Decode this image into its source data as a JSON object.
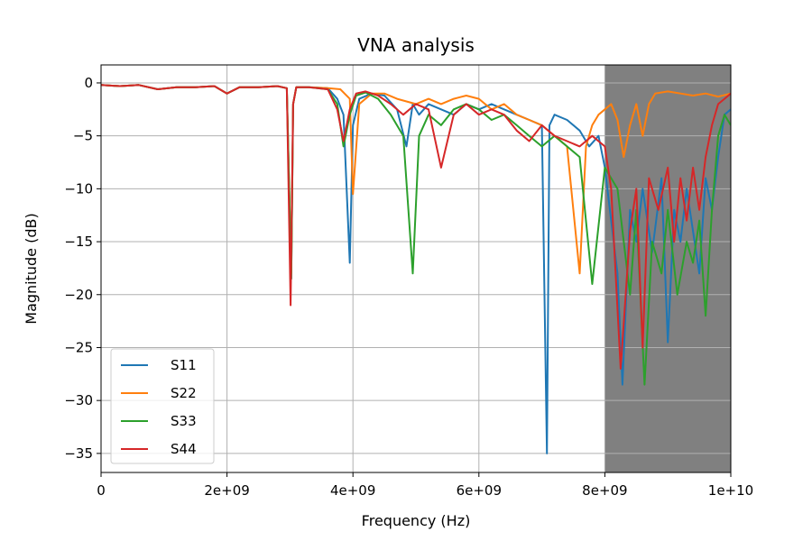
{
  "chart_data": {
    "type": "line",
    "title": "VNA analysis",
    "xlabel": "Frequency (Hz)",
    "ylabel": "Magnitude (dB)",
    "xlim": [
      0,
      10000000000
    ],
    "ylim": [
      -36.8,
      1.7
    ],
    "x_ticks": [
      0,
      2000000000,
      4000000000,
      6000000000,
      8000000000,
      10000000000
    ],
    "x_tick_labels": [
      "0",
      "2e+09",
      "4e+09",
      "6e+09",
      "8e+09",
      "1e+10"
    ],
    "y_ticks": [
      0,
      -5,
      -10,
      -15,
      -20,
      -25,
      -30,
      -35
    ],
    "y_tick_labels": [
      "0",
      "−5",
      "−10",
      "−15",
      "−20",
      "−25",
      "−30",
      "−35"
    ],
    "grid": true,
    "legend_position": "lower-left",
    "shaded_region": {
      "x_start": 8000000000,
      "x_end": 10000000000,
      "color": "#808080"
    },
    "series": [
      {
        "name": "S11",
        "color": "#1f77b4",
        "x": [
          0,
          300000000,
          600000000,
          900000000,
          1200000000,
          1500000000,
          1800000000,
          2000000000,
          2200000000,
          2500000000,
          2800000000,
          2950000000,
          3020000000,
          3050000000,
          3100000000,
          3300000000,
          3600000000,
          3750000000,
          3850000000,
          3950000000,
          4000000000,
          4100000000,
          4300000000,
          4500000000,
          4700000000,
          4850000000,
          4950000000,
          5050000000,
          5200000000,
          5400000000,
          5600000000,
          5800000000,
          6000000000,
          6200000000,
          6400000000,
          6600000000,
          6800000000,
          7000000000,
          7080000000,
          7120000000,
          7200000000,
          7400000000,
          7600000000,
          7750000000,
          7900000000,
          8000000000,
          8100000000,
          8200000000,
          8280000000,
          8400000000,
          8500000000,
          8600000000,
          8750000000,
          8900000000,
          9000000000,
          9100000000,
          9200000000,
          9300000000,
          9400000000,
          9500000000,
          9600000000,
          9700000000,
          9800000000,
          9900000000,
          10000000000
        ],
        "values": [
          -0.2,
          -0.3,
          -0.2,
          -0.6,
          -0.4,
          -0.4,
          -0.3,
          -1.0,
          -0.4,
          -0.4,
          -0.3,
          -0.5,
          -18.5,
          -2.0,
          -0.4,
          -0.4,
          -0.5,
          -1.5,
          -3.0,
          -17.0,
          -4.0,
          -1.5,
          -1.0,
          -1.2,
          -2.5,
          -6.0,
          -2.0,
          -3.0,
          -2.0,
          -2.5,
          -3.0,
          -2.0,
          -2.5,
          -2.0,
          -2.5,
          -3.0,
          -3.5,
          -4.0,
          -35.0,
          -4.0,
          -3.0,
          -3.5,
          -4.5,
          -6.0,
          -5.0,
          -8.0,
          -13.0,
          -18.0,
          -28.5,
          -12.0,
          -15.0,
          -10.0,
          -16.0,
          -9.0,
          -24.5,
          -12.0,
          -15.0,
          -10.0,
          -14.0,
          -18.0,
          -9.0,
          -12.0,
          -7.0,
          -3.0,
          -2.5
        ]
      },
      {
        "name": "S22",
        "color": "#ff7f0e",
        "x": [
          0,
          300000000,
          600000000,
          900000000,
          1200000000,
          1500000000,
          1800000000,
          2000000000,
          2200000000,
          2500000000,
          2800000000,
          2950000000,
          3020000000,
          3050000000,
          3100000000,
          3300000000,
          3600000000,
          3800000000,
          3950000000,
          4000000000,
          4100000000,
          4300000000,
          4500000000,
          4700000000,
          5000000000,
          5200000000,
          5400000000,
          5600000000,
          5800000000,
          6000000000,
          6200000000,
          6400000000,
          6600000000,
          6800000000,
          7000000000,
          7200000000,
          7400000000,
          7600000000,
          7700000000,
          7800000000,
          7900000000,
          8000000000,
          8100000000,
          8200000000,
          8300000000,
          8400000000,
          8500000000,
          8600000000,
          8700000000,
          8800000000,
          9000000000,
          9200000000,
          9400000000,
          9600000000,
          9800000000,
          10000000000
        ],
        "values": [
          -0.2,
          -0.3,
          -0.2,
          -0.6,
          -0.4,
          -0.4,
          -0.3,
          -1.0,
          -0.4,
          -0.4,
          -0.3,
          -0.5,
          -18.0,
          -2.0,
          -0.4,
          -0.4,
          -0.5,
          -0.6,
          -1.5,
          -10.5,
          -2.0,
          -1.0,
          -1.0,
          -1.5,
          -2.0,
          -1.5,
          -2.0,
          -1.5,
          -1.2,
          -1.5,
          -2.5,
          -2.0,
          -3.0,
          -3.5,
          -4.0,
          -5.0,
          -6.0,
          -18.0,
          -6.0,
          -4.0,
          -3.0,
          -2.5,
          -2.0,
          -3.5,
          -7.0,
          -4.0,
          -2.0,
          -5.0,
          -2.0,
          -1.0,
          -0.8,
          -1.0,
          -1.2,
          -1.0,
          -1.3,
          -1.0
        ]
      },
      {
        "name": "S33",
        "color": "#2ca02c",
        "x": [
          0,
          300000000,
          600000000,
          900000000,
          1200000000,
          1500000000,
          1800000000,
          2000000000,
          2200000000,
          2500000000,
          2800000000,
          2950000000,
          3020000000,
          3050000000,
          3100000000,
          3300000000,
          3600000000,
          3750000000,
          3850000000,
          3950000000,
          4050000000,
          4200000000,
          4400000000,
          4600000000,
          4800000000,
          4950000000,
          5050000000,
          5200000000,
          5400000000,
          5600000000,
          5800000000,
          6000000000,
          6200000000,
          6400000000,
          6600000000,
          6800000000,
          7000000000,
          7200000000,
          7400000000,
          7600000000,
          7800000000,
          8000000000,
          8200000000,
          8400000000,
          8500000000,
          8630000000,
          8750000000,
          8900000000,
          9000000000,
          9150000000,
          9300000000,
          9400000000,
          9500000000,
          9600000000,
          9700000000,
          9800000000,
          9900000000,
          10000000000
        ],
        "values": [
          -0.2,
          -0.3,
          -0.2,
          -0.6,
          -0.4,
          -0.4,
          -0.3,
          -1.0,
          -0.4,
          -0.4,
          -0.3,
          -0.5,
          -18.5,
          -2.0,
          -0.4,
          -0.4,
          -0.6,
          -2.0,
          -6.0,
          -3.0,
          -1.2,
          -0.9,
          -1.5,
          -3.0,
          -5.0,
          -18.0,
          -5.0,
          -3.0,
          -4.0,
          -2.5,
          -2.0,
          -2.5,
          -3.5,
          -3.0,
          -4.0,
          -5.0,
          -6.0,
          -5.0,
          -6.0,
          -7.0,
          -19.0,
          -8.0,
          -10.0,
          -20.0,
          -12.0,
          -28.5,
          -15.0,
          -18.0,
          -12.0,
          -20.0,
          -15.0,
          -17.0,
          -13.0,
          -22.0,
          -12.0,
          -5.0,
          -3.0,
          -4.0
        ]
      },
      {
        "name": "S44",
        "color": "#d62728",
        "x": [
          0,
          300000000,
          600000000,
          900000000,
          1200000000,
          1500000000,
          1800000000,
          2000000000,
          2200000000,
          2500000000,
          2800000000,
          2950000000,
          3010000000,
          3050000000,
          3100000000,
          3300000000,
          3600000000,
          3750000000,
          3850000000,
          3950000000,
          4050000000,
          4200000000,
          4400000000,
          4600000000,
          4800000000,
          5000000000,
          5200000000,
          5400000000,
          5600000000,
          5800000000,
          6000000000,
          6200000000,
          6400000000,
          6600000000,
          6800000000,
          7000000000,
          7200000000,
          7400000000,
          7600000000,
          7800000000,
          8000000000,
          8100000000,
          8250000000,
          8400000000,
          8500000000,
          8600000000,
          8700000000,
          8850000000,
          9000000000,
          9100000000,
          9200000000,
          9300000000,
          9400000000,
          9500000000,
          9600000000,
          9700000000,
          9800000000,
          9900000000,
          10000000000
        ],
        "values": [
          -0.2,
          -0.3,
          -0.2,
          -0.6,
          -0.4,
          -0.4,
          -0.3,
          -1.0,
          -0.4,
          -0.4,
          -0.3,
          -0.5,
          -21.0,
          -2.0,
          -0.4,
          -0.4,
          -0.6,
          -2.5,
          -5.5,
          -2.5,
          -1.0,
          -0.8,
          -1.2,
          -2.0,
          -3.0,
          -2.0,
          -2.5,
          -8.0,
          -3.0,
          -2.0,
          -3.0,
          -2.5,
          -3.0,
          -4.5,
          -5.5,
          -4.0,
          -5.0,
          -5.5,
          -6.0,
          -5.0,
          -6.0,
          -10.0,
          -27.0,
          -14.0,
          -10.0,
          -25.0,
          -9.0,
          -12.0,
          -8.0,
          -15.0,
          -9.0,
          -13.0,
          -8.0,
          -12.0,
          -7.0,
          -4.0,
          -2.0,
          -1.5,
          -1.0
        ]
      }
    ]
  }
}
